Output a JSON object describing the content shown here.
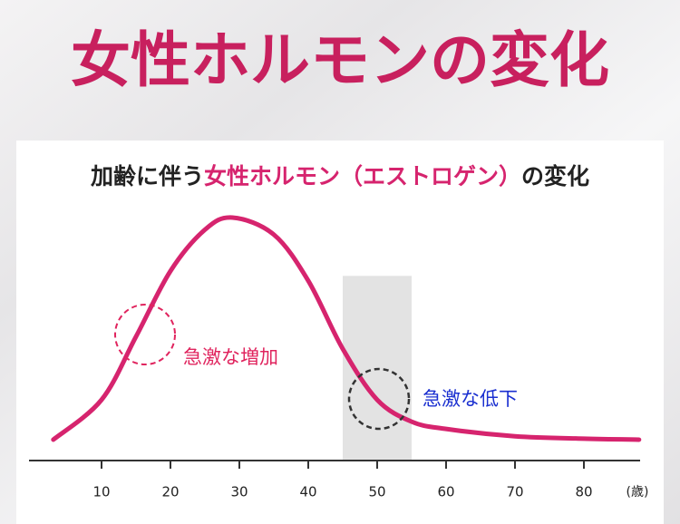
{
  "chart_data": {
    "type": "line",
    "title": "女性ホルモンの変化",
    "subtitle": [
      {
        "text": "加齢に伴う",
        "color": "#222222"
      },
      {
        "text": "女性ホルモン（エストロゲン）",
        "color": "#d6246e"
      },
      {
        "text": "の変化",
        "color": "#222222"
      }
    ],
    "x": [
      3,
      10,
      15,
      20,
      25,
      29,
      35,
      40,
      45,
      50,
      55,
      60,
      70,
      80,
      88
    ],
    "series": [
      {
        "color": "#d6246e",
        "values": [
          8.6,
          25,
          51,
          78,
          95,
          100,
          93,
          74,
          46,
          25,
          16,
          13,
          10,
          9,
          8.6
        ]
      }
    ],
    "xlim": [
      0,
      90
    ],
    "ylim": [
      0,
      100
    ],
    "xticks": [
      10,
      20,
      30,
      40,
      50,
      60,
      70,
      80
    ],
    "x_unit": "(歳)",
    "highlight": {
      "x": [
        45,
        55
      ],
      "top": 76,
      "color": "#e3e3e3"
    },
    "annotations": [
      {
        "text": "急激な増加",
        "color": "#e0245e"
      },
      {
        "text": "急激な低下",
        "color": "#1a2fd0"
      }
    ]
  }
}
